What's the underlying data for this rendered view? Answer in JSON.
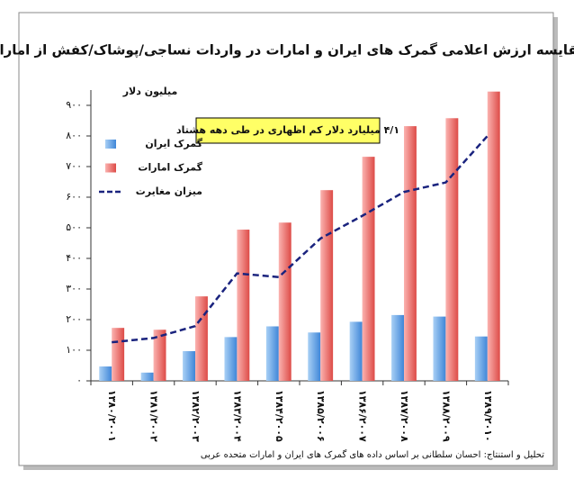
{
  "chart_data": {
    "type": "bar",
    "title": "مقایسه ارزش اعلامی گمرک های ایران و امارات در واردات نساجی/پوشاک/کفش از امارات",
    "y_label": "میلیون دلار",
    "annotation": "۴/۱ میلیارد دلار کم اظهاری در طی دهه هشتاد",
    "footer": "تحلیل و استنتاج: احسان سلطانی بر اساس داده های گمرک های ایران و امارات متحده عربی",
    "categories": [
      "۱۳۸۰/۲۰۰۱",
      "۱۳۸۱/۲۰۰۲",
      "۱۳۸۲/۲۰۰۳",
      "۱۳۸۳/۲۰۰۴",
      "۱۳۸۴/۲۰۰۵",
      "۱۳۸۵/۲۰۰۶",
      "۱۳۸۶/۲۰۰۷",
      "۱۳۸۷/۲۰۰۸",
      "۱۳۸۸/۲۰۰۹",
      "۱۳۸۹/۲۰۱۰"
    ],
    "series": [
      {
        "name": "گمرک ایران",
        "color": "#5a9be0",
        "type": "bar",
        "values": [
          47,
          27,
          97,
          143,
          178,
          158,
          193,
          215,
          210,
          145
        ]
      },
      {
        "name": "گمرک امارات",
        "color": "#e8605c",
        "type": "bar",
        "values": [
          173,
          167,
          276,
          494,
          517,
          623,
          732,
          832,
          858,
          945
        ]
      },
      {
        "name": "میزان مغایرت",
        "color": "#1a237e",
        "type": "line",
        "values": [
          126,
          140,
          179,
          351,
          339,
          465,
          539,
          617,
          648,
          800
        ]
      }
    ],
    "ylim": [
      0,
      950
    ],
    "yticks": [
      {
        "value": 0,
        "label": "۰"
      },
      {
        "value": 100,
        "label": "۱۰۰"
      },
      {
        "value": 200,
        "label": "۲۰۰"
      },
      {
        "value": 300,
        "label": "۳۰۰"
      },
      {
        "value": 400,
        "label": "۴۰۰"
      },
      {
        "value": 500,
        "label": "۵۰۰"
      },
      {
        "value": 600,
        "label": "۶۰۰"
      },
      {
        "value": 700,
        "label": "۷۰۰"
      },
      {
        "value": 800,
        "label": "۸۰۰"
      },
      {
        "value": 900,
        "label": "۹۰۰"
      }
    ],
    "grid": false,
    "legend": "upper left"
  }
}
